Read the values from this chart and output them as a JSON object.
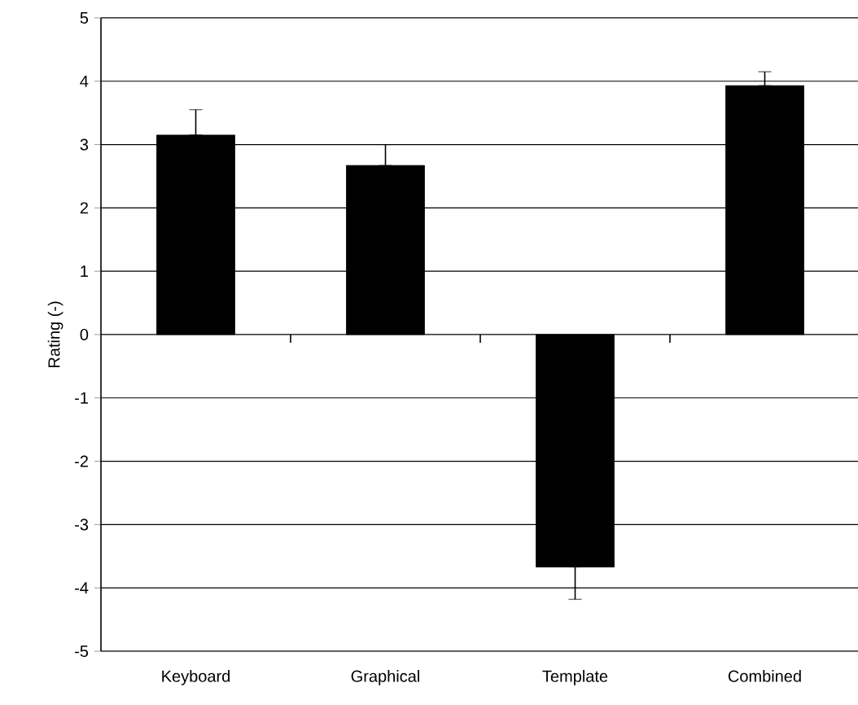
{
  "chart_data": {
    "type": "bar",
    "ylabel": "Rating (-)",
    "categories": [
      "Keyboard",
      "Graphical",
      "Template",
      "Combined"
    ],
    "values": [
      3.15,
      2.67,
      -3.67,
      3.93
    ],
    "errors": [
      [
        3.15,
        3.55
      ],
      [
        2.67,
        3.0
      ],
      [
        -4.18,
        -3.67
      ],
      [
        3.93,
        4.15
      ]
    ],
    "color": "#000000",
    "ylim": [
      -5,
      5
    ],
    "yticks": [
      -5,
      -4,
      -3,
      -2,
      -1,
      0,
      1,
      2,
      3,
      4,
      5
    ],
    "grid": "y"
  }
}
